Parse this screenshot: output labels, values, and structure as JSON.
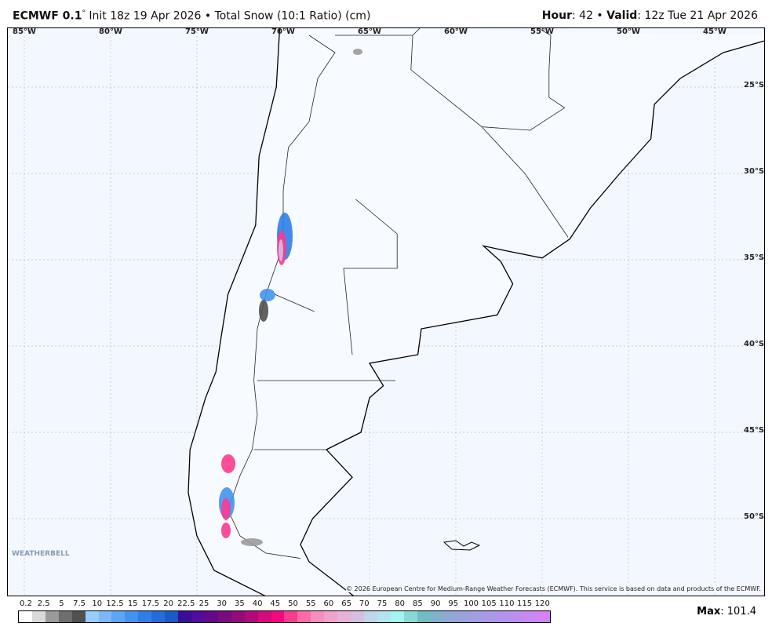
{
  "header": {
    "model": "ECMWF 0.1",
    "degree": "°",
    "init": " Init 18z 19 Apr 2026 • Total Snow (10:1 Ratio) (cm)",
    "hour_label": "Hour",
    "hour": ": 42 • ",
    "valid_label": "Valid",
    "valid": ": 12z Tue 21 Apr 2026"
  },
  "map": {
    "lon_labels": [
      "85°W",
      "80°W",
      "75°W",
      "70°W",
      "65°W",
      "60°W",
      "55°W",
      "50°W",
      "45°W"
    ],
    "lat_labels": [
      "25°S",
      "30°S",
      "35°S",
      "40°S",
      "45°S",
      "50°S"
    ],
    "copyright": "© 2026 European Centre for Medium-Range Weather Forecasts (ECMWF). This service is based on data and products of the ECMWF.",
    "logo": "WEATHERBELL"
  },
  "colorbar": {
    "labels": [
      "0.2",
      "2.5",
      "5",
      "7.5",
      "10",
      "12.5",
      "15",
      "17.5",
      "20",
      "22.5",
      "25",
      "30",
      "35",
      "40",
      "45",
      "50",
      "55",
      "60",
      "65",
      "70",
      "75",
      "80",
      "85",
      "90",
      "95",
      "100",
      "105",
      "110",
      "115",
      "120"
    ],
    "colors": [
      "#ffffff",
      "#d9d9d9",
      "#9a9a9a",
      "#6e6e6e",
      "#505050",
      "#99ccfa",
      "#7ab8f8",
      "#5aa6f5",
      "#4093ef",
      "#2f7ee8",
      "#236cdc",
      "#1a5ac8",
      "#3c0d96",
      "#520b9a",
      "#66078c",
      "#7a0a80",
      "#950a7a",
      "#b2087a",
      "#d50a7c",
      "#f5087e",
      "#fa3b90",
      "#fc6aa8",
      "#f68fbe",
      "#f0a2cc",
      "#e7b1d8",
      "#d4bfe0",
      "#c2d4ea",
      "#b1e4f0",
      "#a4f4f4",
      "#86dcd5",
      "#72bcc4",
      "#83b1cc",
      "#8fa8d4",
      "#98a3dc",
      "#a29ee4",
      "#ab98e8",
      "#b592ed",
      "#bd8df0",
      "#c889f3",
      "#d383f6"
    ],
    "max_label": "Max",
    "max_value": ": 101.4"
  }
}
